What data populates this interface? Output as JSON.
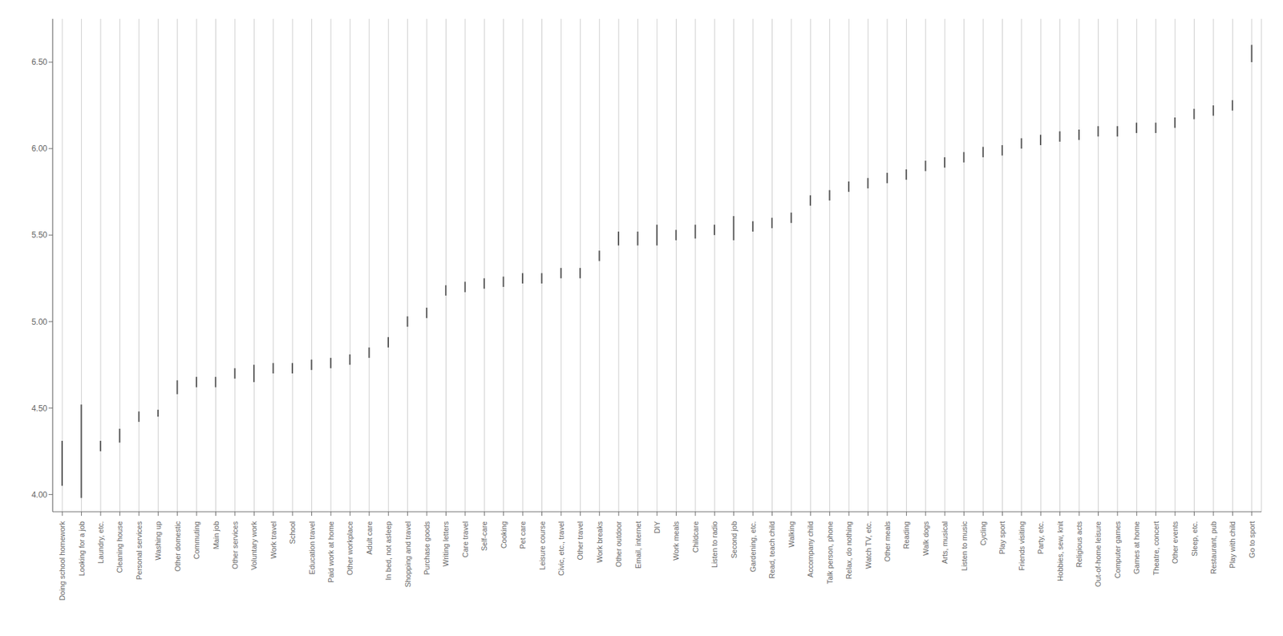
{
  "chart_data": {
    "type": "range",
    "categories": [
      "Doing school homework",
      "Looking for a job",
      "Laundry, etc.",
      "Cleaning house",
      "Personal services",
      "Washing up",
      "Other domestic",
      "Commuting",
      "Main job",
      "Other services",
      "Voluntary work",
      "Work travel",
      "School",
      "Education travel",
      "Paid work at home",
      "Other workplace",
      "Adult care",
      "In bed, not asleep",
      "Shopping and travel",
      "Purchase goods",
      "Writing letters",
      "Care travel",
      "Self-care",
      "Cooking",
      "Pet care",
      "Leisure course",
      "Civic, etc., travel",
      "Other travel",
      "Work breaks",
      "Other outdoor",
      "Email, internet",
      "DIY",
      "Work meals",
      "Childcare",
      "Listen to radio",
      "Second job",
      "Gardening, etc.",
      "Read, teach child",
      "Walking",
      "Accompany child",
      "Talk person, phone",
      "Relax, do nothing",
      "Watch TV, etc.",
      "Other meals",
      "Reading",
      "Walk dogs",
      "Arts, musical",
      "Listen to music",
      "Cycling",
      "Play sport",
      "Friends visiting",
      "Party, etc.",
      "Hobbies, sew, knit",
      "Religious acts",
      "Out-of-home leisure",
      "Computer games",
      "Games at home",
      "Theatre, concert",
      "Other events",
      "Sleep, etc.",
      "Restaurant, pub",
      "Play with child",
      "Go to sport"
    ],
    "lower": [
      4.05,
      3.98,
      4.25,
      4.3,
      4.42,
      4.45,
      4.58,
      4.62,
      4.62,
      4.67,
      4.65,
      4.7,
      4.7,
      4.72,
      4.73,
      4.75,
      4.79,
      4.85,
      4.97,
      5.02,
      5.15,
      5.17,
      5.19,
      5.2,
      5.22,
      5.22,
      5.25,
      5.25,
      5.35,
      5.44,
      5.44,
      5.44,
      5.47,
      5.48,
      5.5,
      5.47,
      5.52,
      5.54,
      5.57,
      5.67,
      5.7,
      5.75,
      5.77,
      5.8,
      5.82,
      5.87,
      5.89,
      5.92,
      5.95,
      5.96,
      6.0,
      6.02,
      6.04,
      6.05,
      6.07,
      6.07,
      6.09,
      6.09,
      6.12,
      6.17,
      6.19,
      6.22,
      6.5
    ],
    "upper": [
      4.31,
      4.52,
      4.31,
      4.38,
      4.48,
      4.49,
      4.66,
      4.68,
      4.68,
      4.73,
      4.75,
      4.76,
      4.76,
      4.78,
      4.79,
      4.81,
      4.85,
      4.91,
      5.03,
      5.08,
      5.21,
      5.23,
      5.25,
      5.26,
      5.28,
      5.28,
      5.31,
      5.31,
      5.41,
      5.52,
      5.52,
      5.56,
      5.53,
      5.56,
      5.56,
      5.61,
      5.58,
      5.6,
      5.63,
      5.73,
      5.76,
      5.81,
      5.83,
      5.86,
      5.88,
      5.93,
      5.95,
      5.98,
      6.01,
      6.02,
      6.06,
      6.08,
      6.1,
      6.11,
      6.13,
      6.13,
      6.15,
      6.15,
      6.18,
      6.23,
      6.25,
      6.28,
      6.6
    ],
    "color": "#555555",
    "ylim": [
      3.9,
      6.75
    ],
    "yticks": [
      {
        "value": 4.0,
        "label": "4.00"
      },
      {
        "value": 4.5,
        "label": "4.50"
      },
      {
        "value": 5.0,
        "label": "5.00"
      },
      {
        "value": 5.5,
        "label": "5.50"
      },
      {
        "value": 6.0,
        "label": "6.00"
      },
      {
        "value": 6.5,
        "label": "6.50"
      }
    ],
    "grid": true
  }
}
